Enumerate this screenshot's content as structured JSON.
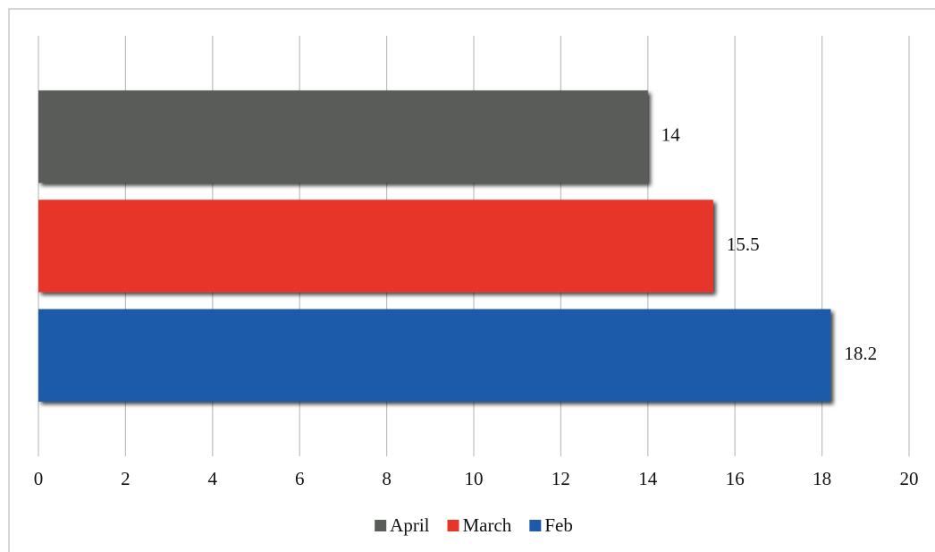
{
  "chart_data": {
    "type": "bar",
    "orientation": "horizontal",
    "categories": [
      null
    ],
    "series": [
      {
        "name": "April",
        "color": "#5a5c5a",
        "values": [
          14
        ]
      },
      {
        "name": "March",
        "color": "#e8352a",
        "values": [
          15.5
        ]
      },
      {
        "name": "Feb",
        "color": "#1f5aaa",
        "values": [
          18.2
        ]
      }
    ],
    "xlim": [
      0,
      20
    ],
    "xticks": [
      0,
      2,
      4,
      6,
      8,
      10,
      12,
      14,
      16,
      18,
      20
    ],
    "grid": true,
    "legend": "bottom",
    "data_labels": true
  }
}
